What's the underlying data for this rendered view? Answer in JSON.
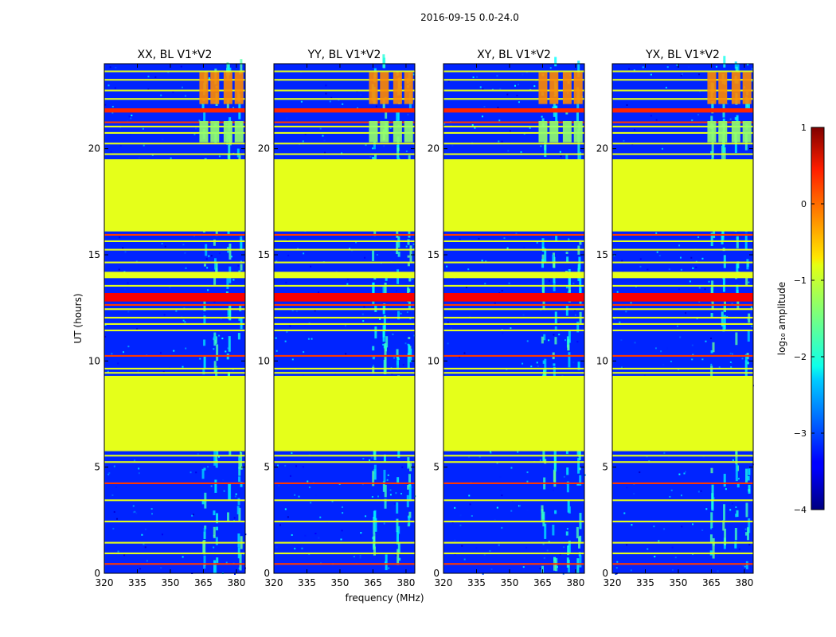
{
  "suptitle": "2016-09-15 0.0-24.0",
  "chart_data": {
    "type": "heatmap",
    "xlabel": "frequency (MHz)",
    "ylabel": "UT (hours)",
    "xlim": [
      320,
      384
    ],
    "ylim": [
      0,
      24
    ],
    "xticks": [
      320,
      335,
      350,
      365,
      380
    ],
    "yticks": [
      0,
      5,
      10,
      15,
      20
    ],
    "colorbar": {
      "label": "log₁₀ amplitude",
      "range": [
        -4,
        1
      ],
      "ticks": [
        -4,
        -3,
        -2,
        -1,
        0,
        1
      ],
      "colormap": "jet"
    },
    "background_level": -3.2,
    "flagged_bands": [
      {
        "t0": 5.75,
        "t1": 9.3,
        "value": -1.0
      },
      {
        "t0": 16.1,
        "t1": 19.5,
        "value": -1.0
      },
      {
        "t0": 12.8,
        "t1": 13.2,
        "value": 0.4
      },
      {
        "t0": 13.9,
        "t1": 14.2,
        "value": -1.0
      },
      {
        "t0": 21.7,
        "t1": 21.9,
        "value": 0.2
      }
    ],
    "rfi_channels_mhz": [
      365,
      370,
      376,
      381
    ],
    "panels": [
      {
        "title": "XX, BL V1*V2"
      },
      {
        "title": "YY, BL V1*V2"
      },
      {
        "title": "XY, BL V1*V2"
      },
      {
        "title": "YX, BL V1*V2"
      }
    ]
  }
}
